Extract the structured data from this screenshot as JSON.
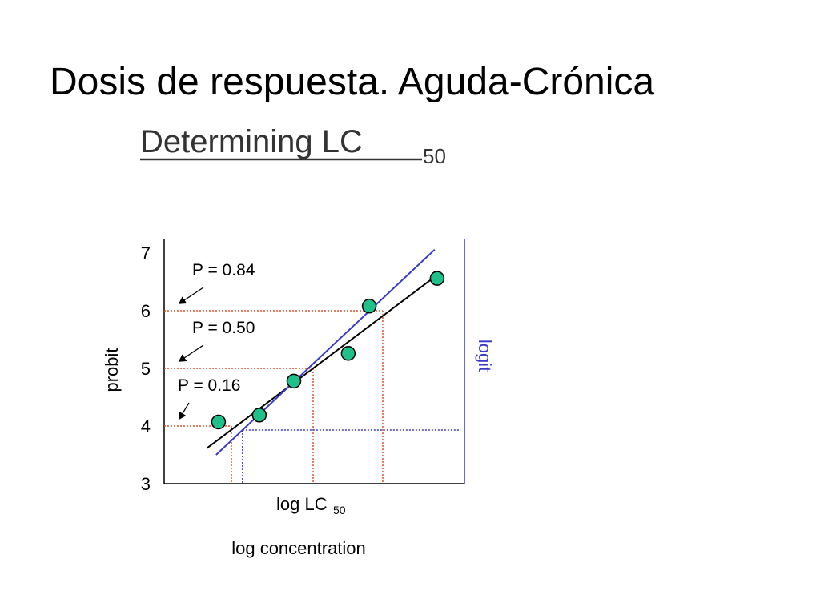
{
  "slide": {
    "title": "Dosis de respuesta. Aguda-Crónica"
  },
  "chart_data": {
    "type": "scatter",
    "title": {
      "text": "Determining LC",
      "subscript": "50"
    },
    "x_marker_label": {
      "text": "log LC",
      "subscript": "50"
    },
    "xlabel": "log concentration",
    "ylabel": "probit",
    "y2label": "logit",
    "y2color": "#3a3ac8",
    "xlim": [
      0,
      10
    ],
    "ylim": [
      3,
      7
    ],
    "yticks": [
      3,
      4,
      5,
      6,
      7
    ],
    "x": [
      1.81,
      3.17,
      4.32,
      6.13,
      6.83,
      9.09
    ],
    "values": [
      4.07,
      4.19,
      4.78,
      5.26,
      6.08,
      6.56
    ],
    "color": "#20c08a",
    "fit_lines": [
      {
        "color": "#000000",
        "x": [
          1.41,
          9.17
        ],
        "y": [
          3.61,
          6.65
        ]
      },
      {
        "color": "#3a3ac8",
        "x": [
          1.73,
          9.01
        ],
        "y": [
          3.5,
          7.06
        ]
      }
    ],
    "reference_lines": [
      {
        "label": "P = 0.84",
        "y": 6,
        "x": 7.28,
        "color": "#e0522a"
      },
      {
        "label": "P = 0.50",
        "y": 5,
        "x": 4.96,
        "color": "#e0522a"
      },
      {
        "label": "P = 0.16",
        "y": 4,
        "x": 2.24,
        "color": "#e0522a"
      }
    ],
    "logit_reference": {
      "y": 3.93,
      "x": 2.61,
      "x_end": 9.87,
      "color": "#3a3ac8"
    }
  }
}
